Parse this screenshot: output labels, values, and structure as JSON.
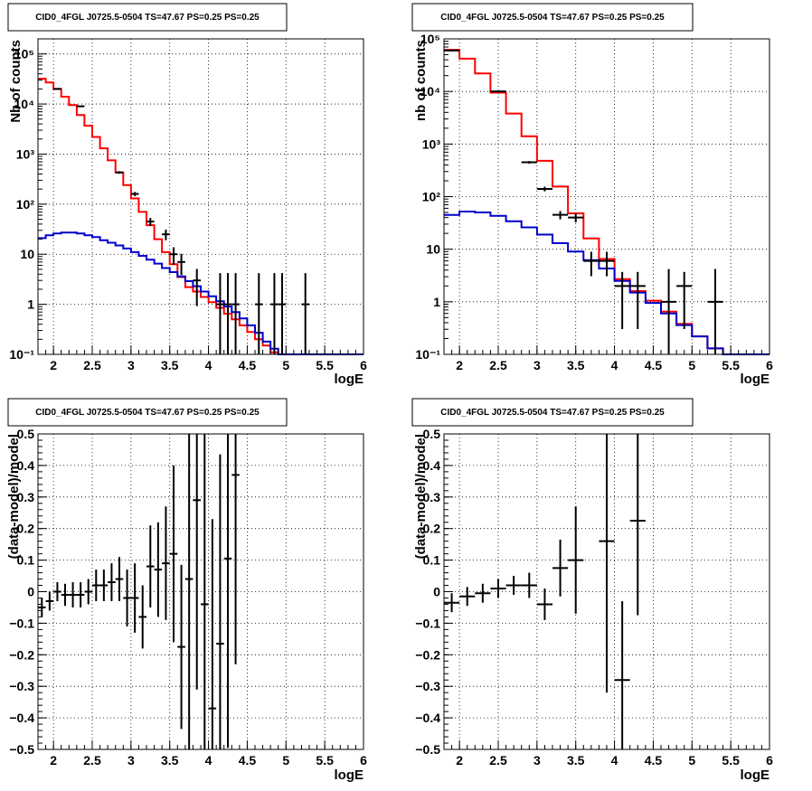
{
  "panels": [
    {
      "title": "CID0_4FGL J0725.5-0504 TS=47.67 PS=0.25 PS=0.25",
      "xlabel": "logE",
      "ylabel": "Nb of counts",
      "xlim": [
        1.8,
        6.0
      ],
      "ylim": [
        0.1,
        200000
      ],
      "log_y": true,
      "x_ticks": [
        2,
        2.5,
        3,
        3.5,
        4,
        4.5,
        5,
        5.5,
        6
      ],
      "x_tick_labels": [
        "2",
        "2.5",
        "3",
        "3.5",
        "4",
        "4.5",
        "5",
        "5.5",
        "6"
      ],
      "y_tick_labels": [
        "10⁻¹",
        "1",
        "10",
        "10²",
        "10³",
        "10⁴",
        "10⁵"
      ]
    },
    {
      "title": "CID0_4FGL J0725.5-0504 TS=47.67 PS=0.25 PS=0.25",
      "xlabel": "logE",
      "ylabel": "nb of counts",
      "xlim": [
        1.8,
        6.0
      ],
      "ylim": [
        0.1,
        100000
      ],
      "log_y": true,
      "x_ticks": [
        2,
        2.5,
        3,
        3.5,
        4,
        4.5,
        5,
        5.5,
        6
      ],
      "x_tick_labels": [
        "2",
        "2.5",
        "3",
        "3.5",
        "4",
        "4.5",
        "5",
        "5.5",
        "6"
      ],
      "y_tick_labels": [
        "10⁻¹",
        "1",
        "10",
        "10²",
        "10³",
        "10⁴",
        "10⁵"
      ]
    },
    {
      "title": "CID0_4FGL J0725.5-0504 TS=47.67 PS=0.25 PS=0.25",
      "xlabel": "logE",
      "ylabel": "(data-model)/model",
      "xlim": [
        1.8,
        6.0
      ],
      "ylim": [
        -0.5,
        0.5
      ],
      "log_y": false,
      "x_ticks": [
        2,
        2.5,
        3,
        3.5,
        4,
        4.5,
        5,
        5.5,
        6
      ],
      "x_tick_labels": [
        "2",
        "2.5",
        "3",
        "3.5",
        "4",
        "4.5",
        "5",
        "5.5",
        "6"
      ],
      "y_ticks": [
        -0.5,
        -0.4,
        -0.3,
        -0.2,
        -0.1,
        0,
        0.1,
        0.2,
        0.3,
        0.4,
        0.5
      ],
      "y_tick_labels": [
        "−0.5",
        "−0.4",
        "−0.3",
        "−0.2",
        "−0.1",
        "0",
        "0.1",
        "0.2",
        "0.3",
        "0.4",
        "0.5"
      ]
    },
    {
      "title": "CID0_4FGL J0725.5-0504 TS=47.67 PS=0.25 PS=0.25",
      "xlabel": "logE",
      "ylabel": "(data-model)/model",
      "xlim": [
        1.8,
        6.0
      ],
      "ylim": [
        -0.5,
        0.5
      ],
      "log_y": false,
      "x_ticks": [
        2,
        2.5,
        3,
        3.5,
        4,
        4.5,
        5,
        5.5,
        6
      ],
      "x_tick_labels": [
        "2",
        "2.5",
        "3",
        "3.5",
        "4",
        "4.5",
        "5",
        "5.5",
        "6"
      ],
      "y_ticks": [
        -0.5,
        -0.4,
        -0.3,
        -0.2,
        -0.1,
        0,
        0.1,
        0.2,
        0.3,
        0.4,
        0.5
      ],
      "y_tick_labels": [
        "−0.5",
        "−0.4",
        "−0.3",
        "−0.2",
        "−0.1",
        "0",
        "0.1",
        "0.2",
        "0.3",
        "0.4",
        "0.5"
      ]
    }
  ],
  "chart_data": [
    {
      "type": "line",
      "grid": true,
      "colors": {
        "total_model": "#ff0000",
        "source_model": "#0000cc",
        "data": "#000000"
      },
      "bin_width": 0.1,
      "bin_centers": [
        1.85,
        1.95,
        2.05,
        2.15,
        2.25,
        2.35,
        2.45,
        2.55,
        2.65,
        2.75,
        2.85,
        2.95,
        3.05,
        3.15,
        3.25,
        3.35,
        3.45,
        3.55,
        3.65,
        3.75,
        3.85,
        3.95,
        4.05,
        4.15,
        4.25,
        4.35,
        4.45,
        4.55,
        4.65,
        4.75,
        4.85,
        4.95,
        5.05,
        5.15,
        5.25,
        5.35,
        5.45,
        5.55,
        5.65,
        5.75,
        5.85,
        5.95
      ],
      "series": [
        {
          "values": [
            32000,
            27000,
            20000,
            14000,
            9500,
            6000,
            3700,
            2200,
            1300,
            750,
            430,
            240,
            130,
            70,
            38,
            20,
            11,
            6.3,
            3.5,
            2.2,
            1.8,
            1.4,
            1.1,
            0.85,
            0.65,
            0.5,
            0.38,
            0.28,
            0.2,
            0.15,
            0.11,
            0.1,
            0.1,
            0.1,
            0.1,
            0.1,
            0.1,
            0.1,
            0.1,
            0.1,
            0.1,
            0.1
          ]
        },
        {
          "values": [
            21,
            24,
            26,
            27,
            27,
            26,
            24,
            22,
            19,
            17,
            15,
            13,
            11,
            9.3,
            7.8,
            6.5,
            5.3,
            4.4,
            3.6,
            2.9,
            2.3,
            1.8,
            1.45,
            1.15,
            0.9,
            0.7,
            0.52,
            0.38,
            0.27,
            0.18,
            0.13,
            0.1,
            0.1,
            0.1,
            0.1,
            0.1,
            0.1,
            0.1,
            0.1,
            0.1,
            0.1,
            0.1
          ]
        },
        {
          "points": [
            [
              2.05,
              20000
            ],
            [
              2.35,
              9000
            ],
            [
              2.85,
              430
            ],
            [
              3.05,
              160
            ],
            [
              3.25,
              45
            ],
            [
              3.45,
              25
            ],
            [
              3.55,
              10
            ],
            [
              3.65,
              7
            ],
            [
              3.85,
              3
            ],
            [
              4.15,
              1
            ],
            [
              4.25,
              1
            ],
            [
              4.35,
              1
            ],
            [
              4.65,
              1
            ],
            [
              4.85,
              1
            ],
            [
              4.95,
              1
            ],
            [
              5.25,
              1
            ]
          ]
        }
      ]
    },
    {
      "type": "line",
      "grid": true,
      "colors": {
        "total_model": "#ff0000",
        "source_model": "#0000cc",
        "data": "#000000"
      },
      "bin_width": 0.2,
      "bin_centers": [
        1.9,
        2.1,
        2.3,
        2.5,
        2.7,
        2.9,
        3.1,
        3.3,
        3.5,
        3.7,
        3.9,
        4.1,
        4.3,
        4.5,
        4.7,
        4.9,
        5.1,
        5.3,
        5.5,
        5.7,
        5.9
      ],
      "series": [
        {
          "values": [
            62000,
            42000,
            22000,
            9500,
            3800,
            1400,
            480,
            155,
            48,
            16,
            6.5,
            2.7,
            1.6,
            1.05,
            0.65,
            0.38,
            0.22,
            0.13,
            0.1,
            0.1,
            0.1
          ]
        },
        {
          "values": [
            45,
            52,
            50,
            43,
            34,
            26,
            19,
            13,
            9,
            6.2,
            4.3,
            2.5,
            1.5,
            0.95,
            0.6,
            0.36,
            0.22,
            0.13,
            0.1,
            0.1,
            0.1
          ]
        },
        {
          "points": [
            [
              1.9,
              60000
            ],
            [
              2.5,
              10000
            ],
            [
              2.9,
              450
            ],
            [
              3.1,
              140
            ],
            [
              3.3,
              45
            ],
            [
              3.5,
              40
            ],
            [
              3.7,
              6
            ],
            [
              3.9,
              6
            ],
            [
              4.1,
              2
            ],
            [
              4.3,
              2
            ],
            [
              4.7,
              1
            ],
            [
              4.9,
              2
            ],
            [
              5.3,
              1
            ]
          ]
        }
      ]
    },
    {
      "type": "scatter",
      "grid": true,
      "x": [
        1.85,
        1.95,
        2.05,
        2.15,
        2.25,
        2.35,
        2.45,
        2.55,
        2.65,
        2.75,
        2.85,
        2.95,
        3.05,
        3.15,
        3.25,
        3.35,
        3.45,
        3.55,
        3.65,
        3.75,
        3.85,
        3.95,
        4.05,
        4.15,
        4.25,
        4.35
      ],
      "y": [
        -0.05,
        -0.03,
        0.0,
        -0.01,
        -0.01,
        -0.01,
        0.0,
        0.02,
        0.02,
        0.03,
        0.04,
        -0.02,
        -0.02,
        -0.08,
        0.08,
        0.07,
        0.09,
        0.12,
        -0.175,
        0.04,
        0.29,
        -0.04,
        -0.37,
        -0.165,
        0.105,
        0.37
      ],
      "yerr": [
        0.03,
        0.03,
        0.03,
        0.035,
        0.04,
        0.04,
        0.04,
        0.05,
        0.05,
        0.06,
        0.07,
        0.09,
        0.11,
        0.1,
        0.13,
        0.15,
        0.18,
        0.28,
        0.26,
        0.6,
        0.6,
        0.6,
        0.6,
        0.6,
        0.6,
        0.6
      ]
    },
    {
      "type": "scatter",
      "grid": true,
      "x": [
        1.9,
        2.1,
        2.3,
        2.5,
        2.7,
        2.9,
        3.1,
        3.3,
        3.5,
        3.9,
        4.1,
        4.3
      ],
      "y": [
        -0.035,
        -0.015,
        -0.005,
        0.01,
        0.02,
        0.02,
        -0.04,
        0.075,
        0.1,
        0.16,
        -0.28,
        0.225
      ],
      "yerr": [
        0.03,
        0.03,
        0.03,
        0.03,
        0.03,
        0.04,
        0.05,
        0.09,
        0.17,
        0.48,
        0.25,
        0.3
      ]
    }
  ]
}
